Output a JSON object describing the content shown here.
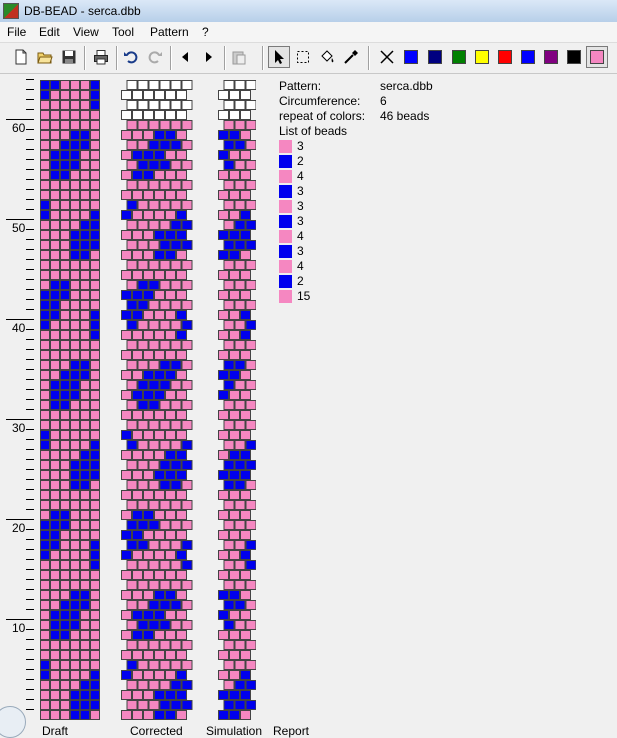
{
  "window": {
    "title": "DB-BEAD - serca.dbb"
  },
  "menu": {
    "items": [
      "File",
      "Edit",
      "View",
      "Tool",
      "Pattern",
      "?"
    ]
  },
  "palette": [
    "#0000ff",
    "#000080",
    "#008000",
    "#ffff00",
    "#ff0000",
    "#0000ff",
    "#800080",
    "#000000"
  ],
  "current_color": "#f587c1",
  "ruler": {
    "labels": [
      "60",
      "50",
      "40",
      "30",
      "20",
      "10"
    ]
  },
  "views": {
    "draft": "Draft",
    "corrected": "Corrected",
    "simulation": "Simulation",
    "report": "Report"
  },
  "info": {
    "pattern_label": "Pattern:",
    "pattern_value": "serca.dbb",
    "circumference_label": "Circumference:",
    "circumference_value": "6",
    "repeat_label": "repeat of colors:",
    "repeat_value": "46 beads",
    "list_label": "List of beads",
    "beads": [
      {
        "color": "#f587c1",
        "count": "3"
      },
      {
        "color": "#0000ee",
        "count": "2"
      },
      {
        "color": "#f587c1",
        "count": "4"
      },
      {
        "color": "#0000ee",
        "count": "3"
      },
      {
        "color": "#f587c1",
        "count": "3"
      },
      {
        "color": "#0000ee",
        "count": "3"
      },
      {
        "color": "#f587c1",
        "count": "4"
      },
      {
        "color": "#0000ee",
        "count": "3"
      },
      {
        "color": "#f587c1",
        "count": "4"
      },
      {
        "color": "#0000ee",
        "count": "2"
      },
      {
        "color": "#f587c1",
        "count": "15"
      }
    ]
  },
  "colors": {
    "bead_pink": "#f587c1",
    "bead_blue": "#0000ee",
    "grid_line": "#444444",
    "empty_bead": "#ffffff"
  }
}
